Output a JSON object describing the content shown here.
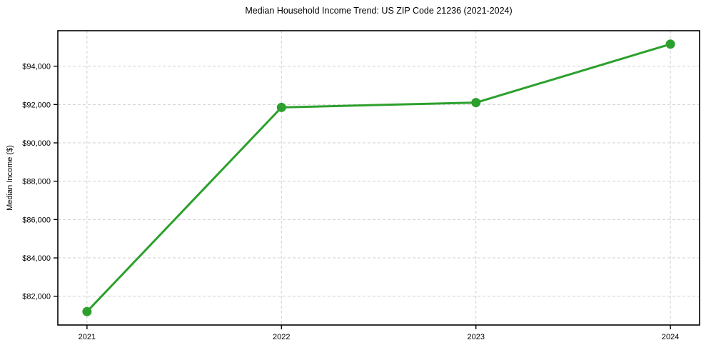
{
  "chart_data": {
    "type": "line",
    "title": "Median Household Income Trend: US ZIP Code 21236 (2021-2024)",
    "xlabel": "",
    "ylabel": "Median Income ($)",
    "series_name": "Median Household Income",
    "x": [
      2021,
      2022,
      2023,
      2024
    ],
    "values": [
      81200,
      91850,
      92100,
      95150
    ],
    "xticks": [
      {
        "value": 2021,
        "label": "2021"
      },
      {
        "value": 2022,
        "label": "2022"
      },
      {
        "value": 2023,
        "label": "2023"
      },
      {
        "value": 2024,
        "label": "2024"
      }
    ],
    "yticks": [
      {
        "value": 82000,
        "label": "$82,000"
      },
      {
        "value": 84000,
        "label": "$84,000"
      },
      {
        "value": 86000,
        "label": "$86,000"
      },
      {
        "value": 88000,
        "label": "$88,000"
      },
      {
        "value": 90000,
        "label": "$90,000"
      },
      {
        "value": 92000,
        "label": "$92,000"
      },
      {
        "value": 94000,
        "label": "$94,000"
      }
    ],
    "xlim": [
      2020.85,
      2024.15
    ],
    "ylim": [
      80500,
      95850
    ],
    "grid": true,
    "grid_style": "dashed",
    "legend_position": "none",
    "line_color": "#2ca02c",
    "marker_color": "#2ca02c",
    "grid_color": "#cfcfcf",
    "axis_color": "#000000",
    "background_color": "#ffffff"
  }
}
